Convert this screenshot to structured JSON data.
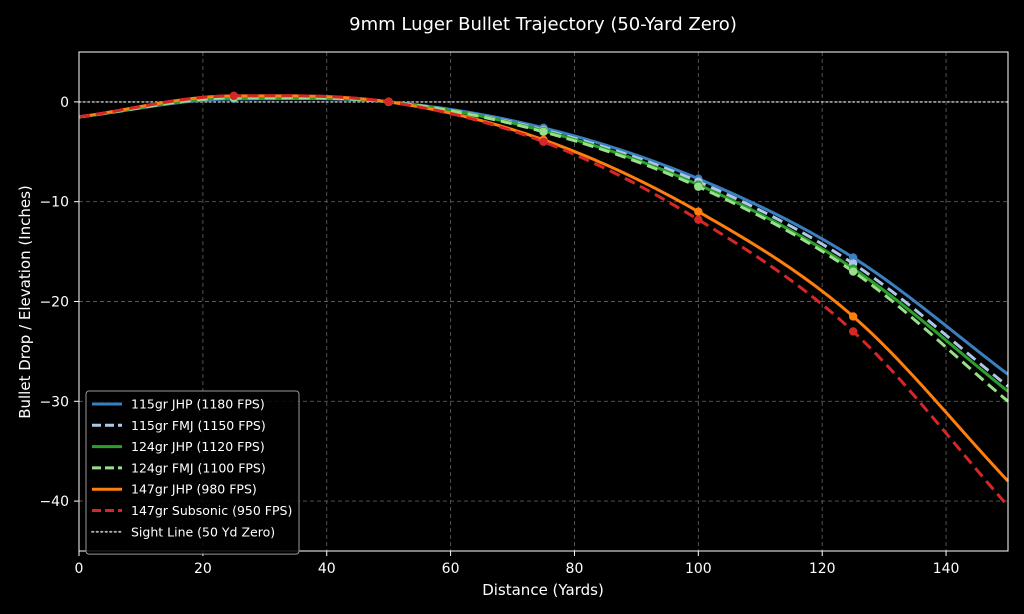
{
  "chart_data": {
    "type": "line",
    "title": "9mm Luger Bullet Trajectory (50-Yard Zero)",
    "xlabel": "Distance (Yards)",
    "ylabel": "Bullet Drop / Elevation (Inches)",
    "xlim": [
      0,
      150
    ],
    "ylim": [
      -45,
      5
    ],
    "xticks": [
      0,
      20,
      40,
      60,
      80,
      100,
      120,
      140
    ],
    "yticks": [
      0,
      -10,
      -20,
      -30,
      -40
    ],
    "xtick_labels": [
      "0",
      "20",
      "40",
      "60",
      "80",
      "100",
      "120",
      "140"
    ],
    "ytick_labels": [
      "0",
      "−10",
      "−20",
      "−30",
      "−40"
    ],
    "grid": true,
    "legend_position": "lower-left",
    "sight_line": {
      "name": "Sight Line (50 Yd Zero)",
      "y": 0,
      "color": "#b0b0b0",
      "style": "dotted"
    },
    "series": [
      {
        "name": "115gr JHP (1180 FPS)",
        "color": "#3a7fc0",
        "style": "solid",
        "x": [
          0,
          25,
          50,
          75,
          100,
          125,
          150
        ],
        "y": [
          -1.5,
          0.3,
          0.0,
          -2.6,
          -7.7,
          -15.6,
          -27.3
        ],
        "markers": [
          25,
          50,
          75,
          100,
          125
        ]
      },
      {
        "name": "115gr FMJ (1150 FPS)",
        "color": "#aec7e8",
        "style": "dashed",
        "x": [
          0,
          25,
          50,
          75,
          100,
          125,
          150
        ],
        "y": [
          -1.5,
          0.4,
          0.0,
          -2.8,
          -8.0,
          -16.2,
          -28.5
        ],
        "markers": [
          25,
          50,
          75,
          100,
          125
        ]
      },
      {
        "name": "124gr JHP (1120 FPS)",
        "color": "#2ca02c",
        "style": "solid",
        "x": [
          0,
          25,
          50,
          75,
          100,
          125,
          150
        ],
        "y": [
          -1.5,
          0.4,
          0.0,
          -2.9,
          -8.3,
          -16.7,
          -29.0
        ],
        "markers": [
          25,
          50,
          75,
          100,
          125
        ]
      },
      {
        "name": "124gr FMJ (1100 FPS)",
        "color": "#98df8a",
        "style": "dashed",
        "x": [
          0,
          25,
          50,
          75,
          100,
          125,
          150
        ],
        "y": [
          -1.5,
          0.4,
          0.0,
          -3.0,
          -8.5,
          -17.0,
          -30.0
        ],
        "markers": [
          25,
          50,
          75,
          100,
          125
        ]
      },
      {
        "name": "147gr JHP (980 FPS)",
        "color": "#ff7f0e",
        "style": "solid",
        "x": [
          0,
          25,
          50,
          75,
          100,
          125,
          150
        ],
        "y": [
          -1.5,
          0.6,
          0.0,
          -3.8,
          -11.0,
          -21.5,
          -38.0
        ],
        "markers": [
          25,
          50,
          75,
          100,
          125
        ]
      },
      {
        "name": "147gr Subsonic (950 FPS)",
        "color": "#d62728",
        "style": "dashed",
        "x": [
          0,
          25,
          50,
          75,
          100,
          125,
          150
        ],
        "y": [
          -1.5,
          0.6,
          0.0,
          -4.0,
          -11.8,
          -23.0,
          -40.5
        ],
        "markers": [
          25,
          50,
          75,
          100,
          125
        ]
      }
    ]
  }
}
